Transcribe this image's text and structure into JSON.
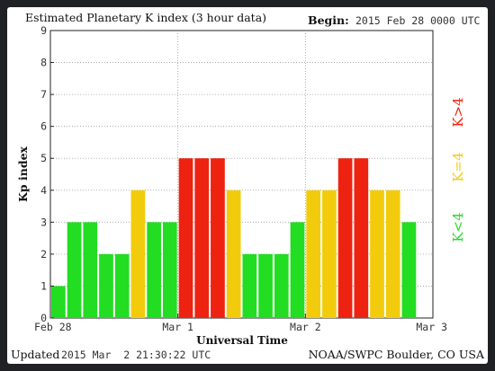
{
  "header": {
    "title": "Estimated Planetary K index (3 hour data)",
    "begin_label": "Begin:",
    "begin_value": "2015 Feb 28 0000 UTC"
  },
  "footer": {
    "updated_label": "Updated",
    "updated_value": "2015 Mar  2 21:30:22 UTC",
    "credit": "NOAA/SWPC Boulder, CO USA"
  },
  "legend": [
    {
      "text": "K<4",
      "color": "#22dd22"
    },
    {
      "text": "K=4",
      "color": "#f2cc0c"
    },
    {
      "text": "K>4",
      "color": "#ee2211"
    }
  ],
  "colors": {
    "low": "#22dd22",
    "mid": "#f2cc0c",
    "high": "#ee2211"
  },
  "chart_data": {
    "type": "bar",
    "title": "Estimated Planetary K index (3 hour data)",
    "xlabel": "Universal Time",
    "ylabel": "Kp index",
    "ylim": [
      0,
      9
    ],
    "yticks": [
      "0",
      "1",
      "2",
      "3",
      "4",
      "5",
      "6",
      "7",
      "8",
      "9"
    ],
    "xticks": [
      "Feb 28",
      "Mar 1",
      "Mar 2",
      "Mar 3"
    ],
    "grid": true,
    "interval_hours": 3,
    "values": [
      1,
      3,
      3,
      2,
      2,
      4,
      3,
      3,
      5,
      5,
      5,
      4,
      2,
      2,
      2,
      3,
      4,
      4,
      5,
      5,
      4,
      4,
      3
    ]
  }
}
